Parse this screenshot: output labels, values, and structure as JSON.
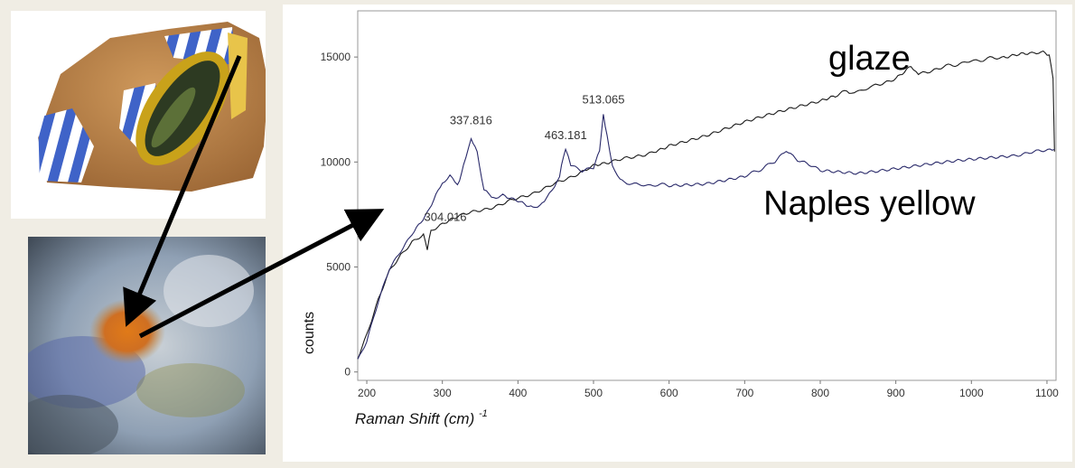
{
  "chart_data": {
    "type": "line",
    "xlabel": "Raman Shift (cm)",
    "xlabel_sup": "-1",
    "ylabel": "counts",
    "xlim": [
      188,
      1112
    ],
    "ylim": [
      -400,
      17200
    ],
    "x_ticks": [
      200,
      300,
      400,
      500,
      600,
      700,
      800,
      900,
      1000,
      1100
    ],
    "y_ticks": [
      0,
      5000,
      10000,
      15000
    ],
    "series": [
      {
        "name": "glaze",
        "color": "#1a1a1a",
        "points": [
          [
            188,
            700
          ],
          [
            200,
            1800
          ],
          [
            215,
            3400
          ],
          [
            230,
            4800
          ],
          [
            245,
            5600
          ],
          [
            260,
            6200
          ],
          [
            275,
            6500
          ],
          [
            280,
            5900
          ],
          [
            285,
            6700
          ],
          [
            300,
            7000
          ],
          [
            320,
            7400
          ],
          [
            350,
            7700
          ],
          [
            380,
            8000
          ],
          [
            410,
            8400
          ],
          [
            440,
            8800
          ],
          [
            470,
            9300
          ],
          [
            500,
            9800
          ],
          [
            520,
            10000
          ],
          [
            550,
            10200
          ],
          [
            580,
            10500
          ],
          [
            600,
            10800
          ],
          [
            650,
            11300
          ],
          [
            700,
            11900
          ],
          [
            750,
            12400
          ],
          [
            800,
            12900
          ],
          [
            820,
            13100
          ],
          [
            835,
            13400
          ],
          [
            845,
            13300
          ],
          [
            870,
            13600
          ],
          [
            900,
            14000
          ],
          [
            920,
            14600
          ],
          [
            930,
            14200
          ],
          [
            960,
            14500
          ],
          [
            1000,
            14800
          ],
          [
            1040,
            15000
          ],
          [
            1060,
            15100
          ],
          [
            1080,
            15150
          ],
          [
            1095,
            15200
          ],
          [
            1103,
            15100
          ],
          [
            1108,
            14000
          ],
          [
            1110,
            10500
          ]
        ]
      },
      {
        "name": "Naples yellow",
        "color": "#2a2a6a",
        "points": [
          [
            188,
            600
          ],
          [
            200,
            1500
          ],
          [
            215,
            3300
          ],
          [
            230,
            4900
          ],
          [
            245,
            5800
          ],
          [
            260,
            6600
          ],
          [
            280,
            7600
          ],
          [
            300,
            9000
          ],
          [
            310,
            9300
          ],
          [
            320,
            8900
          ],
          [
            328,
            9800
          ],
          [
            338,
            11100
          ],
          [
            346,
            10500
          ],
          [
            355,
            8700
          ],
          [
            365,
            8300
          ],
          [
            380,
            8400
          ],
          [
            400,
            8200
          ],
          [
            420,
            7800
          ],
          [
            435,
            8100
          ],
          [
            445,
            8700
          ],
          [
            455,
            9300
          ],
          [
            463,
            10700
          ],
          [
            470,
            9900
          ],
          [
            485,
            9600
          ],
          [
            500,
            9700
          ],
          [
            508,
            10600
          ],
          [
            513,
            12200
          ],
          [
            518,
            11300
          ],
          [
            525,
            9800
          ],
          [
            535,
            9100
          ],
          [
            560,
            8900
          ],
          [
            600,
            8900
          ],
          [
            650,
            9000
          ],
          [
            700,
            9300
          ],
          [
            740,
            10000
          ],
          [
            755,
            10600
          ],
          [
            770,
            10100
          ],
          [
            800,
            9600
          ],
          [
            850,
            9500
          ],
          [
            900,
            9700
          ],
          [
            950,
            9900
          ],
          [
            1000,
            10100
          ],
          [
            1050,
            10300
          ],
          [
            1110,
            10600
          ]
        ]
      }
    ],
    "annotations": [
      {
        "text": "337.816",
        "x": 337.8,
        "y": 11800
      },
      {
        "text": "463.181",
        "x": 463.2,
        "y": 11100
      },
      {
        "text": "513.065",
        "x": 513.1,
        "y": 12800
      },
      {
        "text": "304.016",
        "x": 304.0,
        "y": 7200
      }
    ],
    "series_labels": [
      {
        "text": "glaze",
        "x": 865,
        "y": 14400
      },
      {
        "text": "Naples yellow",
        "x": 865,
        "y": 7500
      }
    ]
  },
  "colors": {
    "background": "#f0ede4",
    "panel": "#ffffff",
    "axis": "#555555"
  }
}
